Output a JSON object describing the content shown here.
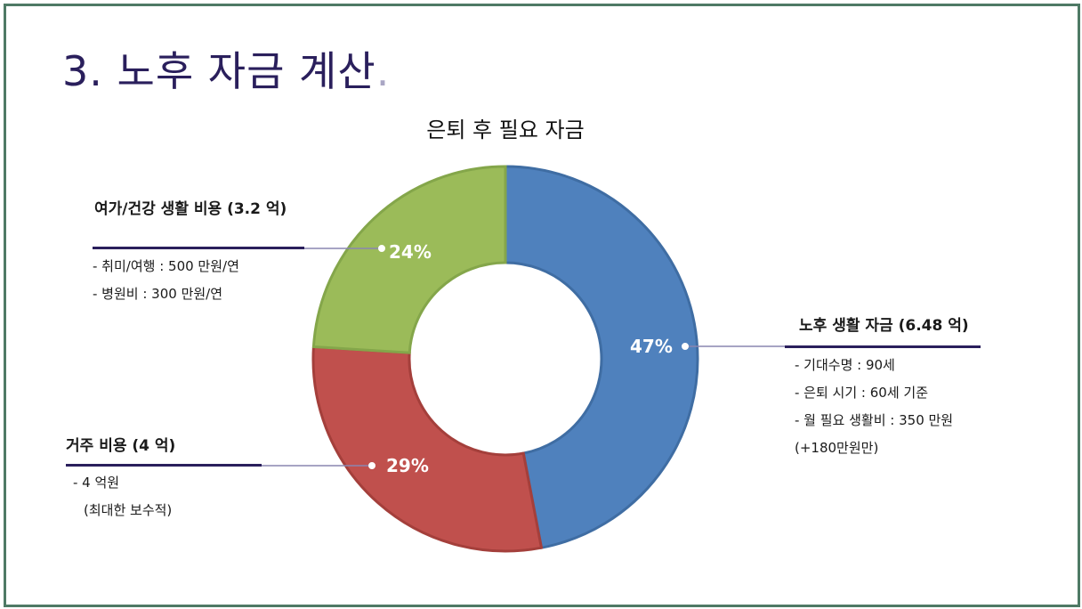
{
  "slide": {
    "title": "3. 노후 자금 계산",
    "title_dot": "."
  },
  "chart_data": {
    "type": "pie",
    "donut": true,
    "title": "은퇴 후 필요 자금",
    "categories": [
      "노후 생활 자금",
      "거주 비용",
      "여가/건강 생활 비용"
    ],
    "values": [
      47,
      29,
      24
    ],
    "data_labels": [
      "47%",
      "29%",
      "24%"
    ],
    "colors": [
      "#4f81bd",
      "#c0504d",
      "#9bbb59"
    ],
    "edge_colors": [
      "#3f6da3",
      "#a43f3b",
      "#84a64a"
    ],
    "start_angle_deg": 0,
    "direction": "clockwise"
  },
  "callouts": {
    "retirement_living": {
      "title": "노후 생활 자금 (6.48 억)",
      "lines": [
        "- 기대수명 : 90세",
        "- 은퇴 시기 : 60세 기준",
        "- 월 필요 생활비 : 350 만원",
        "(+180만원만)"
      ]
    },
    "housing": {
      "title": "거주 비용 (4 억)",
      "lines": [
        "- 4 억원",
        "(최대한 보수적)"
      ]
    },
    "leisure_health": {
      "title": "여가/건강 생활 비용 (3.2 억)",
      "lines": [
        "- 취미/여행 : 500 만원/연",
        "- 병원비 : 300 만원/연"
      ]
    }
  },
  "colors": {
    "frame": "#4e7a65",
    "title": "#2a1f5c",
    "leader_line": "#8a86b0"
  }
}
